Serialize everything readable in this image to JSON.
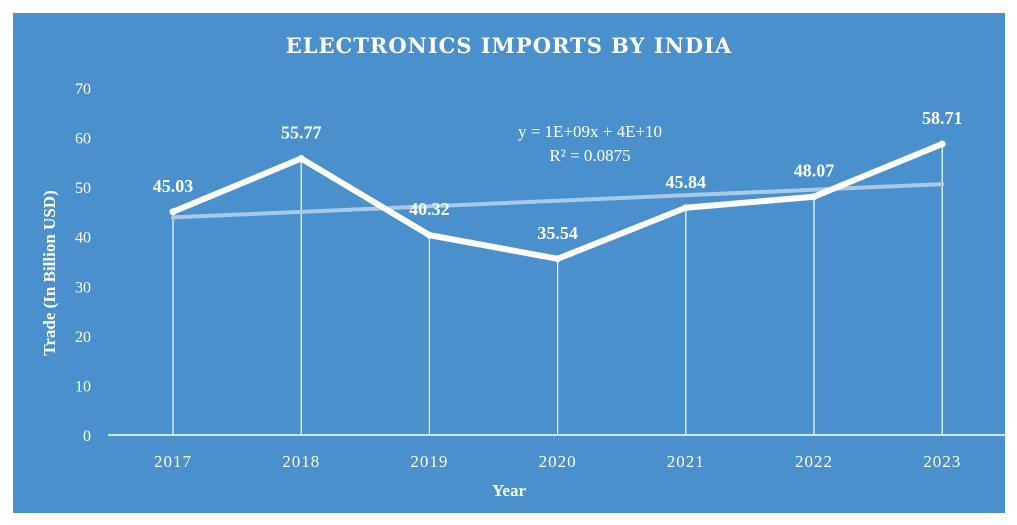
{
  "chart_data": {
    "type": "line",
    "title": "ELECTRONICS IMPORTS BY INDIA",
    "xlabel": "Year",
    "ylabel": "Trade (In Billion USD)",
    "categories": [
      "2017",
      "2018",
      "2019",
      "2020",
      "2021",
      "2022",
      "2023"
    ],
    "series": [
      {
        "values": [
          45.03,
          55.77,
          40.32,
          35.54,
          45.84,
          48.07,
          58.71
        ]
      }
    ],
    "data_labels": [
      "45.03",
      "55.77",
      "40.32",
      "35.54",
      "45.84",
      "48.07",
      "58.71"
    ],
    "ylim": [
      0,
      70
    ],
    "yticks": [
      "0",
      "10",
      "20",
      "30",
      "40",
      "50",
      "60",
      "70"
    ],
    "drop_lines": true,
    "grid": false,
    "trendline": {
      "type": "linear",
      "equation": "y = 1E+09x  + 4E+10",
      "r_squared": "R² = 0.0875",
      "start": 43.9,
      "end": 50.6
    },
    "colors": {
      "background": "#4a90cd",
      "series": "#ffffff",
      "trendline": "#a9c9e8"
    }
  }
}
